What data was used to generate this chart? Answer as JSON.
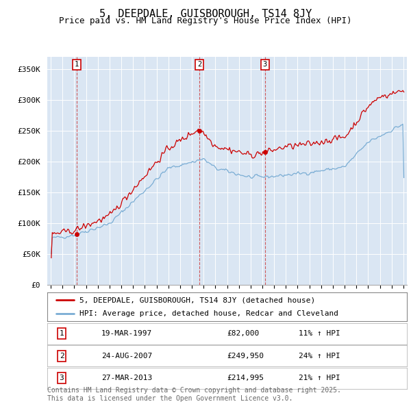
{
  "title": "5, DEEPDALE, GUISBOROUGH, TS14 8JY",
  "subtitle": "Price paid vs. HM Land Registry's House Price Index (HPI)",
  "ylim": [
    0,
    370000
  ],
  "yticks": [
    0,
    50000,
    100000,
    150000,
    200000,
    250000,
    300000,
    350000
  ],
  "ytick_labels": [
    "£0",
    "£50K",
    "£100K",
    "£150K",
    "£200K",
    "£250K",
    "£300K",
    "£350K"
  ],
  "bg_color": "#dae6f3",
  "grid_color": "#ffffff",
  "line1_color": "#cc0000",
  "line2_color": "#7aadd4",
  "marker_color": "#cc0000",
  "sale_year_floats": [
    1997.21,
    2007.65,
    2013.23
  ],
  "sale_prices": [
    82000,
    249950,
    214995
  ],
  "sale_labels": [
    "1",
    "2",
    "3"
  ],
  "sale_hpi_pct": [
    "11% ↑ HPI",
    "24% ↑ HPI",
    "21% ↑ HPI"
  ],
  "sale_date_labels": [
    "19-MAR-1997",
    "24-AUG-2007",
    "27-MAR-2013"
  ],
  "sale_price_labels": [
    "£82,000",
    "£249,950",
    "£214,995"
  ],
  "legend1": "5, DEEPDALE, GUISBOROUGH, TS14 8JY (detached house)",
  "legend2": "HPI: Average price, detached house, Redcar and Cleveland",
  "footnote": "Contains HM Land Registry data © Crown copyright and database right 2025.\nThis data is licensed under the Open Government Licence v3.0.",
  "title_fontsize": 11,
  "subtitle_fontsize": 9,
  "tick_fontsize": 8,
  "legend_fontsize": 8,
  "table_fontsize": 8,
  "footnote_fontsize": 7
}
